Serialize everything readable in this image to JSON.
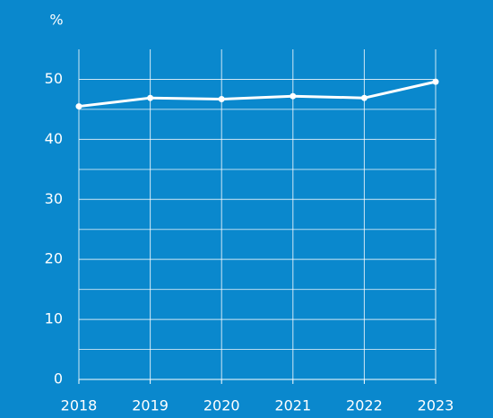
{
  "chart_data": {
    "type": "line",
    "y_label": "%",
    "x": [
      2018,
      2019,
      2020,
      2021,
      2022,
      2023
    ],
    "series": [
      {
        "color": "#ffffff",
        "values": [
          45.5,
          46.9,
          46.7,
          47.2,
          46.9,
          49.6
        ]
      }
    ],
    "xlim": [
      2018,
      2023
    ],
    "xticks": [
      2018,
      2019,
      2020,
      2021,
      2022,
      2023
    ],
    "ylim": [
      0,
      55
    ],
    "yticks": [
      0,
      10,
      20,
      30,
      40,
      50
    ],
    "minor_yticks": [
      5,
      15,
      25,
      35,
      45
    ],
    "grid": true,
    "background": "#0a88cd"
  }
}
